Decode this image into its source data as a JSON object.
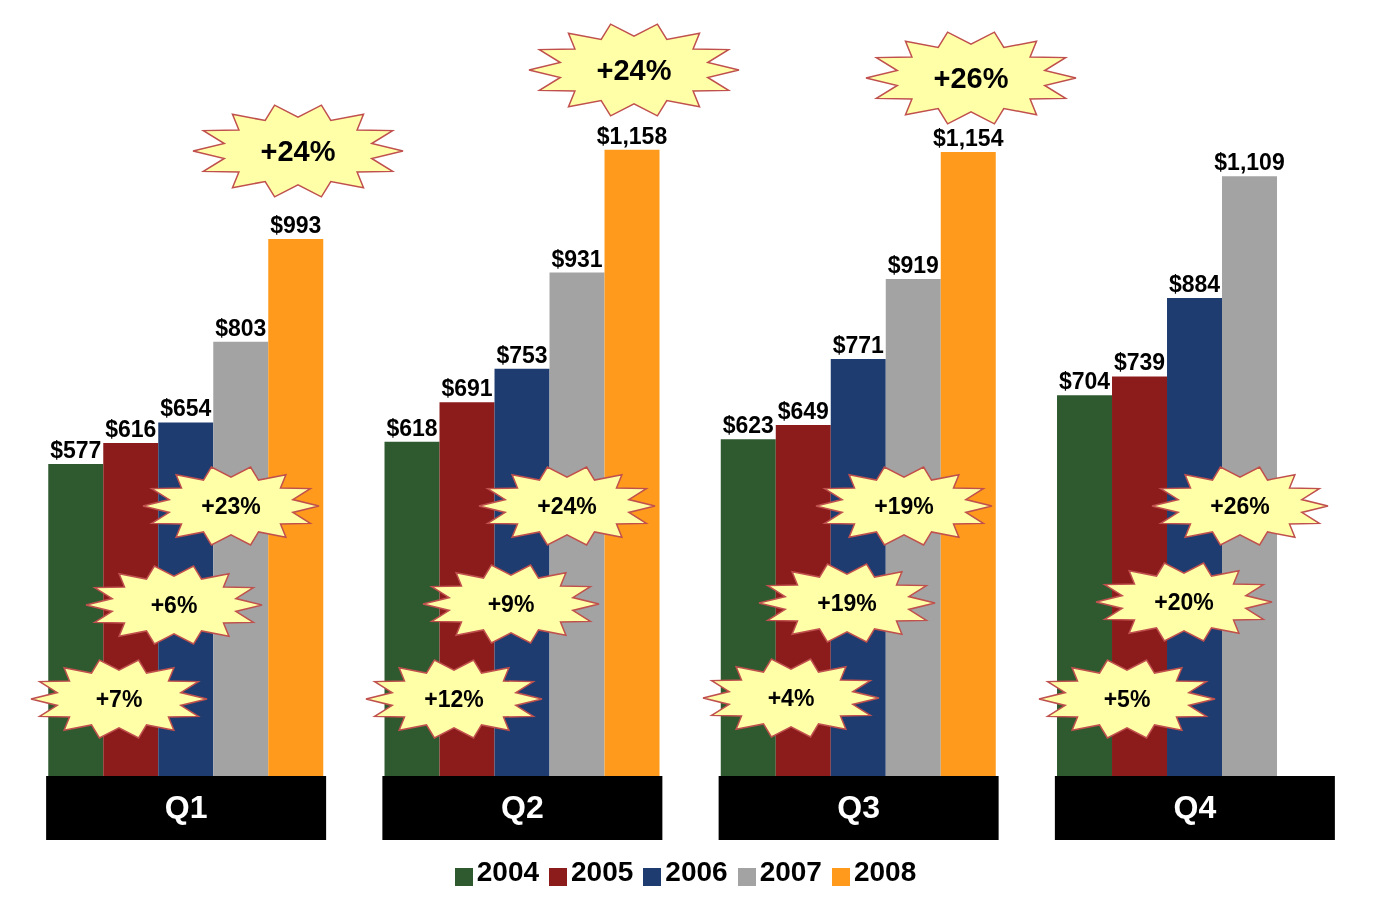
{
  "chart_data": {
    "type": "bar",
    "categories": [
      "Q1",
      "Q2",
      "Q3",
      "Q4"
    ],
    "series": [
      {
        "name": "2004",
        "color": "#2f5a30",
        "values": [
          577,
          618,
          623,
          704
        ],
        "value_labels": [
          "$577",
          "$618",
          "$623",
          "$704"
        ]
      },
      {
        "name": "2005",
        "color": "#8c1c1c",
        "values": [
          616,
          691,
          649,
          739
        ],
        "value_labels": [
          "$616",
          "$691",
          "$649",
          "$739"
        ]
      },
      {
        "name": "2006",
        "color": "#1f3c70",
        "values": [
          654,
          753,
          771,
          884
        ],
        "value_labels": [
          "$654",
          "$753",
          "$771",
          "$884"
        ]
      },
      {
        "name": "2007",
        "color": "#a3a3a3",
        "values": [
          803,
          931,
          919,
          1109
        ],
        "value_labels": [
          "$803",
          "$931",
          "$919",
          "$1,109"
        ]
      },
      {
        "name": "2008",
        "color": "#ff9a1c",
        "values": [
          993,
          1158,
          1154,
          null
        ],
        "value_labels": [
          "$993",
          "$1,158",
          "$1,154",
          null
        ]
      }
    ],
    "legend": "bottom",
    "annotations": [
      "+24%",
      "+23%",
      "+6%",
      "+7%",
      "+24%",
      "+24%",
      "+9%",
      "+12%",
      "+26%",
      "+19%",
      "+19%",
      "+4%",
      "+26%",
      "+20%",
      "+5%"
    ]
  }
}
